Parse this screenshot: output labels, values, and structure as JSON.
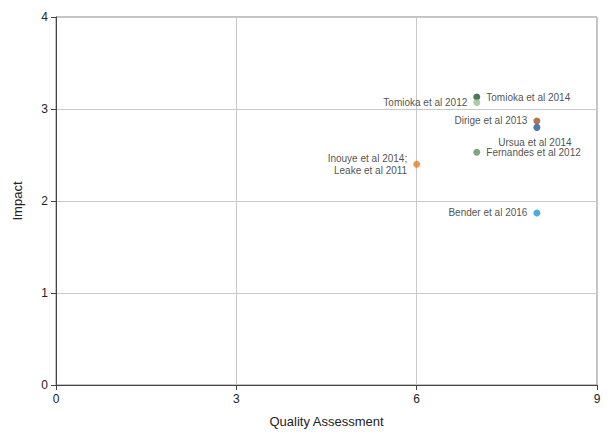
{
  "chart_data": {
    "type": "scatter",
    "x_label": "Quality Assessment",
    "y_label": "Impact",
    "labels": [
      "Tomioka et al 2014",
      "Tomioka et al 2012",
      "Dirige et al 2013",
      "Ursua et al 2014",
      "Fernandes et al 2012",
      "Inouye et al 2014;\nLeake et al 2011",
      "Bender et al 2016"
    ],
    "x": [
      7,
      7,
      8,
      8,
      7,
      6,
      8
    ],
    "values": [
      3.13,
      3.07,
      2.87,
      2.8,
      2.53,
      2.4,
      1.87
    ],
    "colors": [
      "#1e5a2c",
      "#93c193",
      "#a4512b",
      "#1f5d9c",
      "#5f8f62",
      "#ee7d1e",
      "#1b9ad2"
    ],
    "xlim": [
      0,
      9
    ],
    "xticks": [
      0,
      3,
      6,
      9
    ],
    "ylim": [
      0,
      4
    ],
    "yticks": [
      0,
      1,
      2,
      3,
      4
    ],
    "grid": true
  }
}
